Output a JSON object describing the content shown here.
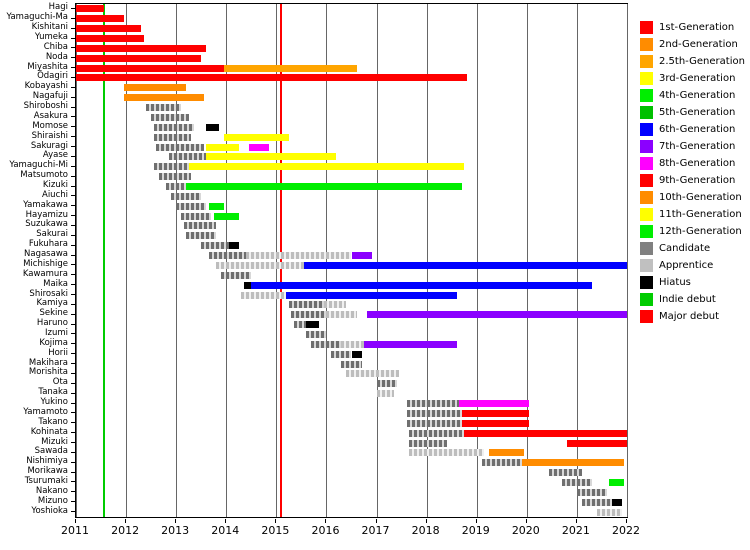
{
  "chart_data": {
    "type": "bar",
    "subtype": "gantt-timeline",
    "title": "",
    "x_axis": {
      "min": 2011,
      "max": 2022,
      "ticks": [
        2011,
        2012,
        2013,
        2014,
        2015,
        2016,
        2017,
        2018,
        2019,
        2020,
        2021,
        2022
      ]
    },
    "colors": {
      "1st-Generation": "#ff0000",
      "2nd-Generation": "#ff8c00",
      "2.5th-Generation": "#ffa500",
      "3rd-Generation": "#ffff00",
      "4th-Generation": "#00ee00",
      "5th-Generation": "#00c000",
      "6th-Generation": "#0000ff",
      "7th-Generation": "#8b00ff",
      "8th-Generation": "#ff00ff",
      "9th-Generation": "#ff0000",
      "10th-Generation": "#ff8c00",
      "11th-Generation": "#ffff00",
      "12th-Generation": "#00ee00",
      "Candidate": "#808080",
      "Apprentice": "#c0c0c0",
      "Hiatus": "#000000"
    },
    "legend": [
      {
        "label": "1st-Generation",
        "color": "#ff0000"
      },
      {
        "label": "2nd-Generation",
        "color": "#ff8c00"
      },
      {
        "label": "2.5th-Generation",
        "color": "#ffa500"
      },
      {
        "label": "3rd-Generation",
        "color": "#ffff00"
      },
      {
        "label": "4th-Generation",
        "color": "#00ee00"
      },
      {
        "label": "5th-Generation",
        "color": "#00c000"
      },
      {
        "label": "6th-Generation",
        "color": "#0000ff"
      },
      {
        "label": "7th-Generation",
        "color": "#8b00ff"
      },
      {
        "label": "8th-Generation",
        "color": "#ff00ff"
      },
      {
        "label": "9th-Generation",
        "color": "#ff0000"
      },
      {
        "label": "10th-Generation",
        "color": "#ff8c00"
      },
      {
        "label": "11th-Generation",
        "color": "#ffff00"
      },
      {
        "label": "12th-Generation",
        "color": "#00ee00"
      },
      {
        "label": "Candidate",
        "color": "#808080"
      },
      {
        "label": "Apprentice",
        "color": "#c0c0c0"
      },
      {
        "label": "Hiatus",
        "color": "#000000"
      },
      {
        "label": "Indie debut",
        "color": "#00cc00"
      },
      {
        "label": "Major debut",
        "color": "#ff0000"
      }
    ],
    "events": [
      {
        "label": "Indie debut",
        "year": 2011.55,
        "color": "#00cc00"
      },
      {
        "label": "Major debut",
        "year": 2015.1,
        "color": "#ff0000"
      }
    ],
    "rows": [
      {
        "name": "Hagi",
        "segments": [
          {
            "start": 2011,
            "end": 2011.55,
            "status": "1st-Generation"
          }
        ]
      },
      {
        "name": "Yamaguchi-Ma",
        "segments": [
          {
            "start": 2011,
            "end": 2011.95,
            "status": "1st-Generation"
          }
        ]
      },
      {
        "name": "Kishitani",
        "segments": [
          {
            "start": 2011,
            "end": 2012.3,
            "status": "1st-Generation"
          }
        ]
      },
      {
        "name": "Yumeka",
        "segments": [
          {
            "start": 2011,
            "end": 2012.35,
            "status": "1st-Generation"
          }
        ]
      },
      {
        "name": "Chiba",
        "segments": [
          {
            "start": 2011,
            "end": 2013.6,
            "status": "1st-Generation"
          }
        ]
      },
      {
        "name": "Noda",
        "segments": [
          {
            "start": 2011,
            "end": 2013.5,
            "status": "1st-Generation"
          }
        ]
      },
      {
        "name": "Miyashita",
        "segments": [
          {
            "start": 2011,
            "end": 2013.95,
            "status": "1st-Generation"
          },
          {
            "start": 2013.95,
            "end": 2016.6,
            "status": "2.5th-Generation"
          }
        ]
      },
      {
        "name": "Ōdagiri",
        "segments": [
          {
            "start": 2011,
            "end": 2018.8,
            "status": "1st-Generation"
          }
        ]
      },
      {
        "name": "Kobayashi",
        "segments": [
          {
            "start": 2011.95,
            "end": 2013.2,
            "status": "2nd-Generation"
          }
        ]
      },
      {
        "name": "Nagafuji",
        "segments": [
          {
            "start": 2011.95,
            "end": 2013.55,
            "status": "2nd-Generation"
          }
        ]
      },
      {
        "name": "Shiroboshi",
        "segments": [
          {
            "start": 2012.4,
            "end": 2013.1,
            "status": "Candidate"
          }
        ]
      },
      {
        "name": "Asakura",
        "segments": [
          {
            "start": 2012.5,
            "end": 2013.25,
            "status": "Candidate"
          }
        ]
      },
      {
        "name": "Momose",
        "segments": [
          {
            "start": 2012.55,
            "end": 2013.35,
            "status": "Candidate"
          },
          {
            "start": 2013.6,
            "end": 2013.85,
            "status": "Hiatus"
          }
        ]
      },
      {
        "name": "Shiraishi",
        "segments": [
          {
            "start": 2012.55,
            "end": 2013.3,
            "status": "Candidate"
          },
          {
            "start": 2013.95,
            "end": 2015.25,
            "status": "3rd-Generation"
          }
        ]
      },
      {
        "name": "Sakuragi",
        "segments": [
          {
            "start": 2012.6,
            "end": 2013.55,
            "status": "Candidate"
          },
          {
            "start": 2013.6,
            "end": 2014.25,
            "status": "3rd-Generation"
          },
          {
            "start": 2014.45,
            "end": 2014.85,
            "status": "8th-Generation"
          }
        ]
      },
      {
        "name": "Ayase",
        "segments": [
          {
            "start": 2012.85,
            "end": 2013.6,
            "status": "Candidate"
          },
          {
            "start": 2013.6,
            "end": 2016.2,
            "status": "3rd-Generation"
          }
        ]
      },
      {
        "name": "Yamaguchi-Mi",
        "segments": [
          {
            "start": 2012.55,
            "end": 2013.25,
            "status": "Candidate"
          },
          {
            "start": 2013.25,
            "end": 2018.75,
            "status": "3rd-Generation"
          }
        ]
      },
      {
        "name": "Matsumoto",
        "segments": [
          {
            "start": 2012.65,
            "end": 2013.3,
            "status": "Candidate"
          }
        ]
      },
      {
        "name": "Kizuki",
        "segments": [
          {
            "start": 2012.8,
            "end": 2013.2,
            "status": "Candidate"
          },
          {
            "start": 2013.2,
            "end": 2018.7,
            "status": "4th-Generation"
          }
        ]
      },
      {
        "name": "Aiuchi",
        "segments": [
          {
            "start": 2012.9,
            "end": 2013.5,
            "status": "Candidate"
          }
        ]
      },
      {
        "name": "Yamakawa",
        "segments": [
          {
            "start": 2013,
            "end": 2013.6,
            "status": "Candidate"
          },
          {
            "start": 2013.65,
            "end": 2013.95,
            "status": "4th-Generation"
          }
        ]
      },
      {
        "name": "Hayamizu",
        "segments": [
          {
            "start": 2013.1,
            "end": 2013.7,
            "status": "Candidate"
          },
          {
            "start": 2013.75,
            "end": 2014.25,
            "status": "4th-Generation"
          }
        ]
      },
      {
        "name": "Suzukawa",
        "segments": [
          {
            "start": 2013.15,
            "end": 2013.8,
            "status": "Candidate"
          }
        ]
      },
      {
        "name": "Sakurai",
        "segments": [
          {
            "start": 2013.2,
            "end": 2013.8,
            "status": "Candidate"
          }
        ]
      },
      {
        "name": "Fukuhara",
        "segments": [
          {
            "start": 2013.5,
            "end": 2014.05,
            "status": "Candidate"
          },
          {
            "start": 2014.05,
            "end": 2014.25,
            "status": "Hiatus"
          }
        ]
      },
      {
        "name": "Nagasawa",
        "segments": [
          {
            "start": 2013.65,
            "end": 2014.4,
            "status": "Candidate"
          },
          {
            "start": 2014.4,
            "end": 2016.5,
            "status": "Apprentice"
          },
          {
            "start": 2016.5,
            "end": 2016.9,
            "status": "7th-Generation"
          }
        ]
      },
      {
        "name": "Michishige",
        "segments": [
          {
            "start": 2013.8,
            "end": 2015.55,
            "status": "Apprentice"
          },
          {
            "start": 2015.55,
            "end": 2022,
            "status": "6th-Generation"
          }
        ]
      },
      {
        "name": "Kawamura",
        "segments": [
          {
            "start": 2013.9,
            "end": 2014.5,
            "status": "Candidate"
          }
        ]
      },
      {
        "name": "Maika",
        "segments": [
          {
            "start": 2014.35,
            "end": 2014.5,
            "status": "Hiatus"
          },
          {
            "start": 2014.5,
            "end": 2021.3,
            "status": "6th-Generation"
          }
        ]
      },
      {
        "name": "Shirosaki",
        "segments": [
          {
            "start": 2014.3,
            "end": 2015.2,
            "status": "Apprentice"
          },
          {
            "start": 2015.2,
            "end": 2018.6,
            "status": "6th-Generation"
          }
        ]
      },
      {
        "name": "Kamiya",
        "segments": [
          {
            "start": 2015.25,
            "end": 2015.95,
            "status": "Candidate"
          },
          {
            "start": 2015.95,
            "end": 2016.4,
            "status": "Apprentice"
          }
        ]
      },
      {
        "name": "Sekine",
        "segments": [
          {
            "start": 2015.3,
            "end": 2016,
            "status": "Candidate"
          },
          {
            "start": 2016,
            "end": 2016.6,
            "status": "Apprentice"
          },
          {
            "start": 2016.8,
            "end": 2022,
            "status": "7th-Generation"
          }
        ]
      },
      {
        "name": "Haruno",
        "segments": [
          {
            "start": 2015.35,
            "end": 2015.6,
            "status": "Candidate"
          },
          {
            "start": 2015.6,
            "end": 2015.85,
            "status": "Hiatus"
          }
        ]
      },
      {
        "name": "Izumi",
        "segments": [
          {
            "start": 2015.6,
            "end": 2016,
            "status": "Candidate"
          }
        ]
      },
      {
        "name": "Kojima",
        "segments": [
          {
            "start": 2015.7,
            "end": 2016.3,
            "status": "Candidate"
          },
          {
            "start": 2016.3,
            "end": 2016.75,
            "status": "Apprentice"
          },
          {
            "start": 2016.75,
            "end": 2018.6,
            "status": "7th-Generation"
          }
        ]
      },
      {
        "name": "Horii",
        "segments": [
          {
            "start": 2016.1,
            "end": 2016.5,
            "status": "Candidate"
          },
          {
            "start": 2016.5,
            "end": 2016.7,
            "status": "Hiatus"
          }
        ]
      },
      {
        "name": "Makihara",
        "segments": [
          {
            "start": 2016.3,
            "end": 2016.7,
            "status": "Candidate"
          }
        ]
      },
      {
        "name": "Morishita",
        "segments": [
          {
            "start": 2016.4,
            "end": 2017.45,
            "status": "Apprentice"
          }
        ]
      },
      {
        "name": "Ota",
        "segments": [
          {
            "start": 2017,
            "end": 2017.4,
            "status": "Candidate"
          }
        ]
      },
      {
        "name": "Tanaka",
        "segments": [
          {
            "start": 2017,
            "end": 2017.35,
            "status": "Apprentice"
          }
        ]
      },
      {
        "name": "Yukino",
        "segments": [
          {
            "start": 2017.6,
            "end": 2018.65,
            "status": "Candidate"
          },
          {
            "start": 2018.65,
            "end": 2020.05,
            "status": "8th-Generation"
          }
        ]
      },
      {
        "name": "Yamamoto",
        "segments": [
          {
            "start": 2017.6,
            "end": 2018.7,
            "status": "Candidate"
          },
          {
            "start": 2018.7,
            "end": 2020.05,
            "status": "9th-Generation"
          }
        ]
      },
      {
        "name": "Takano",
        "segments": [
          {
            "start": 2017.6,
            "end": 2018.7,
            "status": "Candidate"
          },
          {
            "start": 2018.7,
            "end": 2020.05,
            "status": "9th-Generation"
          }
        ]
      },
      {
        "name": "Kohinata",
        "segments": [
          {
            "start": 2017.65,
            "end": 2018.75,
            "status": "Candidate"
          },
          {
            "start": 2018.75,
            "end": 2022,
            "status": "9th-Generation"
          }
        ]
      },
      {
        "name": "Mizuki",
        "segments": [
          {
            "start": 2017.65,
            "end": 2018.4,
            "status": "Candidate"
          },
          {
            "start": 2020.8,
            "end": 2022,
            "status": "9th-Generation"
          }
        ]
      },
      {
        "name": "Sawada",
        "segments": [
          {
            "start": 2017.65,
            "end": 2019.15,
            "status": "Apprentice"
          },
          {
            "start": 2019.25,
            "end": 2019.95,
            "status": "10th-Generation"
          }
        ]
      },
      {
        "name": "Nishimiya",
        "segments": [
          {
            "start": 2019.1,
            "end": 2019.9,
            "status": "Candidate"
          },
          {
            "start": 2019.9,
            "end": 2021.95,
            "status": "10th-Generation"
          }
        ]
      },
      {
        "name": "Morikawa",
        "segments": [
          {
            "start": 2020.45,
            "end": 2021.1,
            "status": "Candidate"
          }
        ]
      },
      {
        "name": "Tsurumaki",
        "segments": [
          {
            "start": 2020.7,
            "end": 2021.3,
            "status": "Candidate"
          },
          {
            "start": 2021.65,
            "end": 2021.95,
            "status": "12th-Generation"
          }
        ]
      },
      {
        "name": "Nakano",
        "segments": [
          {
            "start": 2021,
            "end": 2021.6,
            "status": "Candidate"
          }
        ]
      },
      {
        "name": "Mizuno",
        "segments": [
          {
            "start": 2021.1,
            "end": 2021.7,
            "status": "Candidate"
          },
          {
            "start": 2021.7,
            "end": 2021.9,
            "status": "Hiatus"
          }
        ]
      },
      {
        "name": "Yoshioka",
        "segments": [
          {
            "start": 2021.4,
            "end": 2021.9,
            "status": "Apprentice"
          }
        ]
      }
    ]
  }
}
